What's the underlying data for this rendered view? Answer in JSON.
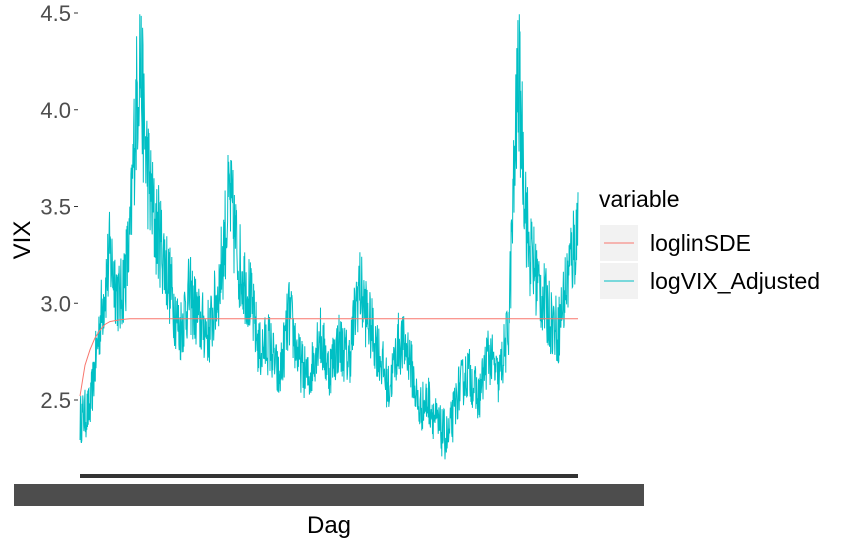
{
  "chart_data": {
    "type": "line",
    "xlabel": "Dag",
    "ylabel": "VIX",
    "ylim": [
      2.1,
      4.5
    ],
    "yticks": [
      "2.5",
      "3.0",
      "3.5",
      "4.0",
      "4.5"
    ],
    "ytick_values": [
      2.5,
      3.0,
      3.5,
      4.0,
      4.5
    ],
    "x_tick_labels_overlapping": true,
    "grid": false,
    "legend": {
      "title": "variable",
      "position": "right"
    },
    "series": [
      {
        "name": "loglinSDE",
        "color": "#F8766D",
        "x": [
          0,
          0.005,
          0.01,
          0.02,
          0.03,
          0.04,
          0.05,
          0.06,
          0.08,
          0.1,
          0.12,
          1.0
        ],
        "values": [
          2.52,
          2.6,
          2.68,
          2.76,
          2.82,
          2.86,
          2.89,
          2.905,
          2.915,
          2.92,
          2.92,
          2.92
        ]
      },
      {
        "name": "logVIX_Adjusted",
        "color": "#00BFC4",
        "x": [
          0,
          0.02,
          0.04,
          0.06,
          0.08,
          0.1,
          0.11,
          0.12,
          0.13,
          0.14,
          0.15,
          0.16,
          0.18,
          0.2,
          0.22,
          0.24,
          0.26,
          0.28,
          0.3,
          0.32,
          0.34,
          0.36,
          0.38,
          0.4,
          0.42,
          0.44,
          0.46,
          0.48,
          0.5,
          0.52,
          0.54,
          0.56,
          0.58,
          0.6,
          0.62,
          0.64,
          0.66,
          0.68,
          0.7,
          0.72,
          0.74,
          0.76,
          0.78,
          0.8,
          0.82,
          0.84,
          0.86,
          0.88,
          0.9,
          0.92,
          0.94,
          0.96,
          0.98,
          1.0
        ],
        "values": [
          2.4,
          2.45,
          2.9,
          3.25,
          3.0,
          3.3,
          3.9,
          4.3,
          3.85,
          3.6,
          3.4,
          3.35,
          3.1,
          2.85,
          3.05,
          2.9,
          2.85,
          3.1,
          3.55,
          3.2,
          3.05,
          2.75,
          2.8,
          2.6,
          2.95,
          2.7,
          2.6,
          2.85,
          2.65,
          2.8,
          2.7,
          3.1,
          2.9,
          2.75,
          2.55,
          2.8,
          2.75,
          2.45,
          2.5,
          2.35,
          2.3,
          2.55,
          2.65,
          2.5,
          2.75,
          2.6,
          2.85,
          4.2,
          3.3,
          3.1,
          2.95,
          2.85,
          3.15,
          3.4
        ]
      }
    ]
  }
}
